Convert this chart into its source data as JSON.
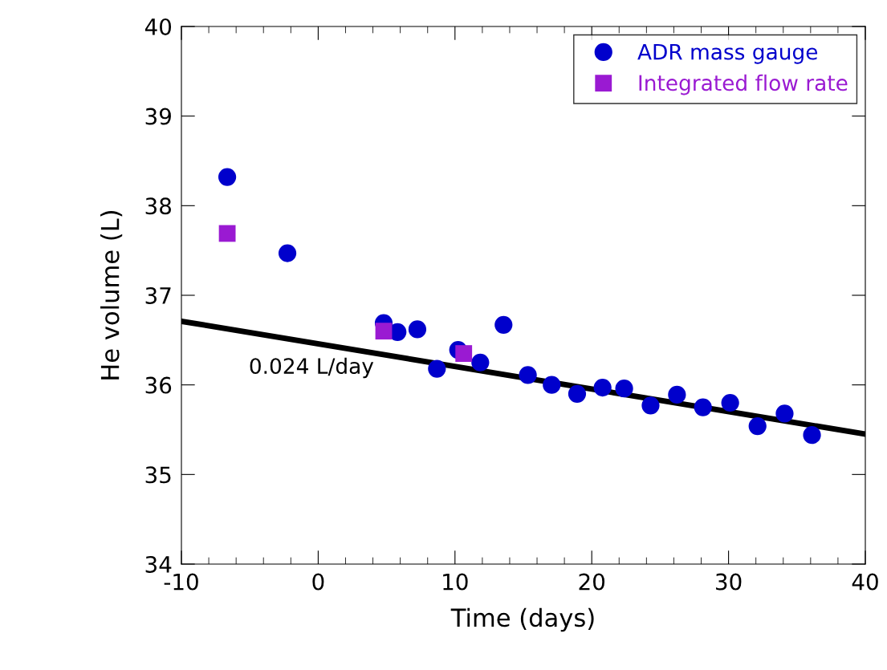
{
  "chart_data": {
    "type": "scatter",
    "xlabel": "Time (days)",
    "ylabel": "He volume (L)",
    "xlim": [
      -10,
      40
    ],
    "xticks": [
      -10,
      0,
      10,
      20,
      30,
      40
    ],
    "ylim": [
      34,
      40
    ],
    "yticks": [
      34,
      35,
      36,
      37,
      38,
      39,
      40
    ],
    "grid": false,
    "legend": "top right",
    "series": [
      {
        "name": "ADR mass gauge",
        "color": "#0000cc",
        "marker": "circle",
        "x": [
          -6.65,
          -2.25,
          4.79,
          5.8,
          7.25,
          8.68,
          10.23,
          11.85,
          13.55,
          15.33,
          17.07,
          18.93,
          20.79,
          22.37,
          24.3,
          26.23,
          28.13,
          30.12,
          32.12,
          34.1,
          36.1
        ],
        "values": [
          38.32,
          37.47,
          36.69,
          36.59,
          36.62,
          36.18,
          36.39,
          36.25,
          36.67,
          36.11,
          36.0,
          35.9,
          35.97,
          35.96,
          35.77,
          35.89,
          35.75,
          35.8,
          35.54,
          35.68,
          35.44
        ]
      },
      {
        "name": "Integrated flow rate",
        "color": "#9a1ad2",
        "marker": "square",
        "x": [
          -6.65,
          4.79,
          10.64
        ],
        "values": [
          37.69,
          36.6,
          36.35
        ]
      },
      {
        "type": "line",
        "color": "#000000",
        "marker": "none",
        "x": [
          -10,
          40
        ],
        "values": [
          36.71,
          35.45
        ]
      }
    ],
    "annotations": [
      "0.024 L/day"
    ]
  }
}
